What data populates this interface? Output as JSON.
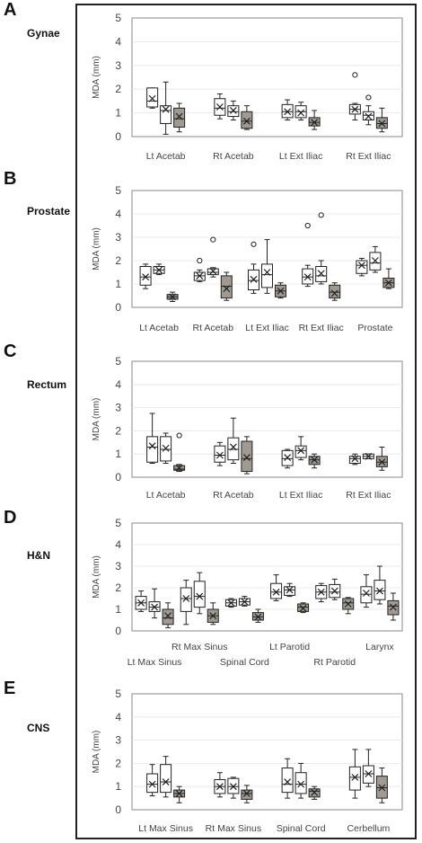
{
  "colors": {
    "open_box": "#ffffff",
    "shaded_box": "#a09a92",
    "stroke": "#222222",
    "axis": "#8a8a8a"
  },
  "chart_data": [
    {
      "letter": "A",
      "name": "Gynae",
      "type": "box",
      "ylabel": "MDA  (mm)",
      "ylim": [
        0,
        5
      ],
      "yticks": [
        "0",
        "1",
        "2",
        "3",
        "4",
        "5"
      ],
      "categories": [
        "Lt Acetab",
        "Rt Acetab",
        "Lt Ext Iliac",
        "Rt Ext Iliac"
      ],
      "groups": [
        [
          {
            "min": 1.2,
            "q1": 1.25,
            "med": 1.5,
            "q3": 2.05,
            "max": 2.05,
            "mean": 1.6,
            "shaded": false
          },
          {
            "min": 0.1,
            "q1": 0.55,
            "med": 1.1,
            "q3": 1.3,
            "max": 2.3,
            "mean": 1.15,
            "shaded": false
          },
          {
            "min": 0.2,
            "q1": 0.4,
            "med": 0.75,
            "q3": 1.2,
            "max": 1.4,
            "mean": 0.85,
            "shaded": true
          }
        ],
        [
          {
            "min": 0.75,
            "q1": 0.9,
            "med": 1.2,
            "q3": 1.6,
            "max": 1.8,
            "mean": 1.25,
            "shaded": false
          },
          {
            "min": 0.7,
            "q1": 0.85,
            "med": 1.05,
            "q3": 1.3,
            "max": 1.5,
            "mean": 1.1,
            "shaded": false
          },
          {
            "min": 0.3,
            "q1": 0.35,
            "med": 0.65,
            "q3": 1.05,
            "max": 1.3,
            "mean": 0.65,
            "shaded": true
          }
        ],
        [
          {
            "min": 0.7,
            "q1": 0.8,
            "med": 1.05,
            "q3": 1.35,
            "max": 1.55,
            "mean": 1.05,
            "shaded": false
          },
          {
            "min": 0.7,
            "q1": 0.8,
            "med": 1.05,
            "q3": 1.3,
            "max": 1.45,
            "mean": 1.0,
            "shaded": false
          },
          {
            "min": 0.3,
            "q1": 0.45,
            "med": 0.6,
            "q3": 0.8,
            "max": 1.1,
            "mean": 0.6,
            "shaded": true
          }
        ],
        [
          {
            "min": 0.7,
            "q1": 0.95,
            "med": 1.15,
            "q3": 1.35,
            "max": 1.4,
            "mean": 1.15,
            "shaded": false,
            "outliers": [
              2.6
            ]
          },
          {
            "min": 0.5,
            "q1": 0.7,
            "med": 0.9,
            "q3": 1.05,
            "max": 1.3,
            "mean": 0.85,
            "shaded": false,
            "outliers": [
              1.65
            ]
          },
          {
            "min": 0.2,
            "q1": 0.35,
            "med": 0.55,
            "q3": 0.8,
            "max": 1.2,
            "mean": 0.55,
            "shaded": true
          }
        ]
      ]
    },
    {
      "letter": "B",
      "name": "Prostate",
      "type": "box",
      "ylabel": "MDA (mm)",
      "ylim": [
        0,
        5
      ],
      "yticks": [
        "0",
        "1",
        "2",
        "3",
        "4",
        "5"
      ],
      "categories": [
        "Lt Acetab",
        "Rt Acetab",
        "Lt Ext Iliac",
        "Rt Ext Iliac",
        "Prostate"
      ],
      "groups": [
        [
          {
            "min": 0.8,
            "q1": 0.95,
            "med": 1.3,
            "q3": 1.75,
            "max": 1.85,
            "mean": 1.3,
            "shaded": false
          },
          {
            "min": 1.4,
            "q1": 1.45,
            "med": 1.6,
            "q3": 1.75,
            "max": 1.85,
            "mean": 1.6,
            "shaded": false
          },
          {
            "min": 0.25,
            "q1": 0.35,
            "med": 0.45,
            "q3": 0.55,
            "max": 0.65,
            "mean": 0.45,
            "shaded": true
          }
        ],
        [
          {
            "min": 1.1,
            "q1": 1.15,
            "med": 1.35,
            "q3": 1.5,
            "max": 1.6,
            "mean": 1.35,
            "shaded": false,
            "outliers": [
              2.0
            ]
          },
          {
            "min": 1.3,
            "q1": 1.4,
            "med": 1.5,
            "q3": 1.65,
            "max": 1.7,
            "mean": 1.55,
            "shaded": false,
            "outliers": [
              2.9
            ]
          },
          {
            "min": 0.3,
            "q1": 0.4,
            "med": 0.9,
            "q3": 1.35,
            "max": 1.5,
            "mean": 0.8,
            "shaded": true
          }
        ],
        [
          {
            "min": 0.6,
            "q1": 0.75,
            "med": 1.15,
            "q3": 1.6,
            "max": 1.85,
            "mean": 1.2,
            "shaded": false,
            "outliers": [
              2.7
            ]
          },
          {
            "min": 0.6,
            "q1": 0.85,
            "med": 1.4,
            "q3": 1.85,
            "max": 2.9,
            "mean": 1.5,
            "shaded": false
          },
          {
            "min": 0.4,
            "q1": 0.45,
            "med": 0.7,
            "q3": 0.95,
            "max": 1.05,
            "mean": 0.7,
            "shaded": true
          }
        ],
        [
          {
            "min": 0.9,
            "q1": 1.0,
            "med": 1.3,
            "q3": 1.65,
            "max": 1.8,
            "mean": 1.3,
            "shaded": false,
            "outliers": [
              3.5
            ]
          },
          {
            "min": 1.0,
            "q1": 1.1,
            "med": 1.35,
            "q3": 1.75,
            "max": 2.0,
            "mean": 1.45,
            "shaded": false,
            "outliers": [
              3.95
            ]
          },
          {
            "min": 0.3,
            "q1": 0.4,
            "med": 0.65,
            "q3": 0.95,
            "max": 1.05,
            "mean": 0.6,
            "shaded": true
          }
        ],
        [
          {
            "min": 1.35,
            "q1": 1.45,
            "med": 1.8,
            "q3": 2.0,
            "max": 2.1,
            "mean": 1.8,
            "shaded": false
          },
          {
            "min": 1.5,
            "q1": 1.6,
            "med": 1.9,
            "q3": 2.35,
            "max": 2.6,
            "mean": 2.0,
            "shaded": false
          },
          {
            "min": 0.8,
            "q1": 0.85,
            "med": 1.05,
            "q3": 1.25,
            "max": 1.65,
            "mean": 1.05,
            "shaded": true
          }
        ]
      ]
    },
    {
      "letter": "C",
      "name": "Rectum",
      "type": "box",
      "ylabel": "MDA (mm)",
      "ylim": [
        0,
        5
      ],
      "yticks": [
        "0",
        "1",
        "2",
        "3",
        "4",
        "5"
      ],
      "categories": [
        "Lt Acetab",
        "Rt Acetab",
        "Lt Ext Iliac",
        "Rt Ext Iliac"
      ],
      "groups": [
        [
          {
            "min": 0.6,
            "q1": 0.65,
            "med": 1.3,
            "q3": 1.75,
            "max": 2.75,
            "mean": 1.35,
            "shaded": false
          },
          {
            "min": 0.6,
            "q1": 0.7,
            "med": 1.2,
            "q3": 1.75,
            "max": 1.9,
            "mean": 1.25,
            "shaded": false
          },
          {
            "min": 0.25,
            "q1": 0.3,
            "med": 0.35,
            "q3": 0.5,
            "max": 0.55,
            "mean": 0.4,
            "shaded": true,
            "outliers": [
              1.8
            ]
          }
        ],
        [
          {
            "min": 0.5,
            "q1": 0.65,
            "med": 0.95,
            "q3": 1.35,
            "max": 1.5,
            "mean": 0.95,
            "shaded": false
          },
          {
            "min": 0.6,
            "q1": 0.75,
            "med": 1.2,
            "q3": 1.7,
            "max": 2.55,
            "mean": 1.3,
            "shaded": false
          },
          {
            "min": 0.15,
            "q1": 0.25,
            "med": 0.8,
            "q3": 1.55,
            "max": 1.75,
            "mean": 0.85,
            "shaded": true
          }
        ],
        [
          {
            "min": 0.4,
            "q1": 0.5,
            "med": 0.8,
            "q3": 1.15,
            "max": 1.2,
            "mean": 0.85,
            "shaded": false
          },
          {
            "min": 0.75,
            "q1": 0.85,
            "med": 1.15,
            "q3": 1.35,
            "max": 1.75,
            "mean": 1.15,
            "shaded": false
          },
          {
            "min": 0.4,
            "q1": 0.55,
            "med": 0.75,
            "q3": 0.9,
            "max": 1.0,
            "mean": 0.75,
            "shaded": true
          }
        ],
        [
          {
            "min": 0.55,
            "q1": 0.6,
            "med": 0.8,
            "q3": 0.9,
            "max": 1.0,
            "mean": 0.8,
            "shaded": false
          },
          {
            "min": 0.8,
            "q1": 0.8,
            "med": 0.9,
            "q3": 1.0,
            "max": 1.0,
            "mean": 0.9,
            "shaded": false
          },
          {
            "min": 0.3,
            "q1": 0.45,
            "med": 0.65,
            "q3": 0.9,
            "max": 1.3,
            "mean": 0.65,
            "shaded": true
          }
        ]
      ]
    },
    {
      "letter": "D",
      "name": "H&N",
      "type": "box",
      "ylabel": "MDA (mm)",
      "ylim": [
        0,
        5
      ],
      "yticks": [
        "0",
        "1",
        "2",
        "3",
        "4",
        "5"
      ],
      "categories": [
        "Lt Max Sinus",
        "Rt Max Sinus",
        "Spinal Cord",
        "Lt Parotid",
        "Rt Parotid",
        "Larynx"
      ],
      "category_label_rows": [
        1,
        0,
        1,
        0,
        1,
        0
      ],
      "groups": [
        [
          {
            "min": 0.9,
            "q1": 1.0,
            "med": 1.3,
            "q3": 1.6,
            "max": 1.85,
            "mean": 1.3,
            "shaded": false
          },
          {
            "min": 0.6,
            "q1": 0.9,
            "med": 1.1,
            "q3": 1.35,
            "max": 1.95,
            "mean": 1.1,
            "shaded": false
          },
          {
            "min": 0.15,
            "q1": 0.3,
            "med": 0.6,
            "q3": 1.0,
            "max": 1.3,
            "mean": 0.7,
            "shaded": true
          }
        ],
        [
          {
            "min": 0.3,
            "q1": 0.9,
            "med": 1.5,
            "q3": 2.0,
            "max": 2.35,
            "mean": 1.5,
            "shaded": false
          },
          {
            "min": 0.8,
            "q1": 1.1,
            "med": 1.6,
            "q3": 2.3,
            "max": 2.7,
            "mean": 1.6,
            "shaded": false
          },
          {
            "min": 0.3,
            "q1": 0.4,
            "med": 0.7,
            "q3": 1.0,
            "max": 1.3,
            "mean": 0.7,
            "shaded": true
          }
        ],
        [
          {
            "min": 1.1,
            "q1": 1.15,
            "med": 1.3,
            "q3": 1.45,
            "max": 1.5,
            "mean": 1.3,
            "shaded": false
          },
          {
            "min": 1.15,
            "q1": 1.2,
            "med": 1.35,
            "q3": 1.5,
            "max": 1.6,
            "mean": 1.35,
            "shaded": false
          },
          {
            "min": 0.4,
            "q1": 0.5,
            "med": 0.65,
            "q3": 0.85,
            "max": 1.0,
            "mean": 0.65,
            "shaded": true
          }
        ],
        [
          {
            "min": 1.4,
            "q1": 1.5,
            "med": 1.8,
            "q3": 2.2,
            "max": 2.6,
            "mean": 1.8,
            "shaded": false
          },
          {
            "min": 1.6,
            "q1": 1.65,
            "med": 1.9,
            "q3": 2.05,
            "max": 2.2,
            "mean": 1.9,
            "shaded": false
          },
          {
            "min": 0.85,
            "q1": 0.9,
            "med": 1.1,
            "q3": 1.25,
            "max": 1.3,
            "mean": 1.05,
            "shaded": true
          }
        ],
        [
          {
            "min": 1.35,
            "q1": 1.5,
            "med": 1.8,
            "q3": 2.1,
            "max": 2.2,
            "mean": 1.8,
            "shaded": false
          },
          {
            "min": 1.45,
            "q1": 1.55,
            "med": 1.8,
            "q3": 2.15,
            "max": 2.4,
            "mean": 1.85,
            "shaded": false
          },
          {
            "min": 0.8,
            "q1": 1.0,
            "med": 1.3,
            "q3": 1.5,
            "max": 1.55,
            "mean": 1.25,
            "shaded": true
          }
        ],
        [
          {
            "min": 1.1,
            "q1": 1.3,
            "med": 1.7,
            "q3": 2.05,
            "max": 2.6,
            "mean": 1.75,
            "shaded": false
          },
          {
            "min": 1.25,
            "q1": 1.45,
            "med": 1.85,
            "q3": 2.35,
            "max": 3.0,
            "mean": 1.85,
            "shaded": false
          },
          {
            "min": 0.5,
            "q1": 0.75,
            "med": 1.15,
            "q3": 1.4,
            "max": 1.75,
            "mean": 1.1,
            "shaded": true
          }
        ]
      ]
    },
    {
      "letter": "E",
      "name": "CNS",
      "type": "box",
      "ylabel": "MDA  (mm)",
      "ylim": [
        0,
        5
      ],
      "yticks": [
        "0",
        "1",
        "2",
        "3",
        "4",
        "5"
      ],
      "categories": [
        "Lt Max Sinus",
        "Rt Max Sinus",
        "Spinal Cord",
        "Cerbellum"
      ],
      "groups": [
        [
          {
            "min": 0.6,
            "q1": 0.75,
            "med": 1.1,
            "q3": 1.55,
            "max": 1.95,
            "mean": 1.1,
            "shaded": false
          },
          {
            "min": 0.55,
            "q1": 0.75,
            "med": 1.2,
            "q3": 1.95,
            "max": 2.3,
            "mean": 1.2,
            "shaded": false
          },
          {
            "min": 0.3,
            "q1": 0.55,
            "med": 0.7,
            "q3": 0.85,
            "max": 1.0,
            "mean": 0.7,
            "shaded": true
          }
        ],
        [
          {
            "min": 0.55,
            "q1": 0.7,
            "med": 1.0,
            "q3": 1.3,
            "max": 1.6,
            "mean": 1.0,
            "shaded": false
          },
          {
            "min": 0.5,
            "q1": 0.7,
            "med": 1.0,
            "q3": 1.35,
            "max": 1.4,
            "mean": 1.0,
            "shaded": false
          },
          {
            "min": 0.3,
            "q1": 0.45,
            "med": 0.7,
            "q3": 0.85,
            "max": 1.05,
            "mean": 0.7,
            "shaded": true
          }
        ],
        [
          {
            "min": 0.5,
            "q1": 0.75,
            "med": 1.1,
            "q3": 1.8,
            "max": 2.2,
            "mean": 1.2,
            "shaded": false
          },
          {
            "min": 0.5,
            "q1": 0.7,
            "med": 1.1,
            "q3": 1.6,
            "max": 2.0,
            "mean": 1.1,
            "shaded": false
          },
          {
            "min": 0.45,
            "q1": 0.55,
            "med": 0.8,
            "q3": 0.9,
            "max": 1.0,
            "mean": 0.75,
            "shaded": true
          }
        ],
        [
          {
            "min": 0.5,
            "q1": 0.85,
            "med": 1.4,
            "q3": 1.85,
            "max": 2.6,
            "mean": 1.4,
            "shaded": false
          },
          {
            "min": 1.0,
            "q1": 1.15,
            "med": 1.55,
            "q3": 1.9,
            "max": 2.6,
            "mean": 1.55,
            "shaded": false
          },
          {
            "min": 0.3,
            "q1": 0.5,
            "med": 0.95,
            "q3": 1.45,
            "max": 1.8,
            "mean": 0.95,
            "shaded": true
          }
        ]
      ]
    }
  ]
}
